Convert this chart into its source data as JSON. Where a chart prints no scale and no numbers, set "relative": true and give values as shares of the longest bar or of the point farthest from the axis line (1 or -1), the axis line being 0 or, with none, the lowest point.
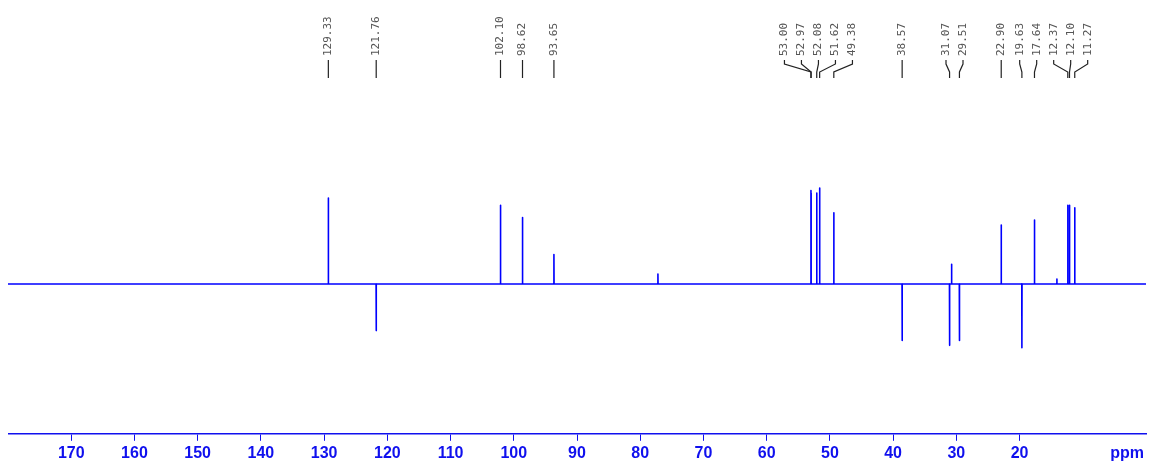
{
  "chart_data": {
    "type": "line",
    "relative": true,
    "xlabel": "ppm",
    "xlim": [
      180,
      0
    ],
    "xticks": [
      170,
      160,
      150,
      140,
      130,
      120,
      110,
      100,
      90,
      80,
      70,
      60,
      50,
      40,
      30,
      20
    ],
    "grid": false,
    "marker": "none",
    "line_style": "solid",
    "series": [
      {
        "color": "#0000ff",
        "x": [
          180,
          129.35,
          129.33,
          129.31,
          121.78,
          121.76,
          121.74,
          102.12,
          102.1,
          102.08,
          98.64,
          98.62,
          98.6,
          93.67,
          93.65,
          93.63,
          77.22,
          77.2,
          77.18,
          53.012,
          53,
          52.988,
          52.982,
          52.97,
          52.958,
          52.1,
          52.08,
          52.06,
          51.64,
          51.62,
          51.6,
          49.4,
          49.38,
          49.36,
          38.59,
          38.57,
          38.55,
          31.09,
          31.07,
          31.05,
          30.77,
          30.75,
          30.73,
          29.53,
          29.51,
          29.49,
          22.92,
          22.9,
          22.88,
          19.65,
          19.63,
          19.61,
          17.66,
          17.64,
          17.62,
          14.12,
          14.1,
          14.08,
          12.39,
          12.37,
          12.35,
          12.12,
          12.1,
          12.08,
          11.29,
          11.27,
          11.25,
          0
        ],
        "values": [
          0.61,
          0.61,
          0.96,
          0.61,
          0.61,
          0.42,
          0.61,
          0.61,
          0.93,
          0.61,
          0.61,
          0.88,
          0.61,
          0.61,
          0.73,
          0.61,
          0.61,
          0.65,
          0.61,
          0.61,
          0.99,
          0.61,
          0.61,
          0.98,
          0.61,
          0.61,
          0.98,
          0.61,
          0.61,
          1,
          0.61,
          0.61,
          0.9,
          0.61,
          0.61,
          0.38,
          0.61,
          0.61,
          0.36,
          0.61,
          0.61,
          0.69,
          0.61,
          0.61,
          0.38,
          0.61,
          0.61,
          0.85,
          0.61,
          0.61,
          0.35,
          0.61,
          0.61,
          0.87,
          0.61,
          0.61,
          0.63,
          0.61,
          0.61,
          0.93,
          0.61,
          0.61,
          0.93,
          0.61,
          0.61,
          0.92,
          0.61,
          0.61
        ]
      }
    ],
    "annotations": [
      {
        "text": "129.33",
        "x": 129.33
      },
      {
        "text": "121.76",
        "x": 121.76
      },
      {
        "text": "102.10",
        "x": 102.1
      },
      {
        "text": "98.62",
        "x": 98.62
      },
      {
        "text": "93.65",
        "x": 93.65
      },
      {
        "text": "53.00",
        "x": 53
      },
      {
        "text": "52.97",
        "x": 52.97
      },
      {
        "text": "52.08",
        "x": 52.08
      },
      {
        "text": "51.62",
        "x": 51.62
      },
      {
        "text": "49.38",
        "x": 49.38
      },
      {
        "text": "38.57",
        "x": 38.57
      },
      {
        "text": "31.07",
        "x": 31.07
      },
      {
        "text": "29.51",
        "x": 29.51
      },
      {
        "text": "22.90",
        "x": 22.9
      },
      {
        "text": "19.63",
        "x": 19.63
      },
      {
        "text": "17.64",
        "x": 17.64
      },
      {
        "text": "12.37",
        "x": 12.37
      },
      {
        "text": "12.10",
        "x": 12.1
      },
      {
        "text": "11.27",
        "x": 11.27
      }
    ]
  }
}
